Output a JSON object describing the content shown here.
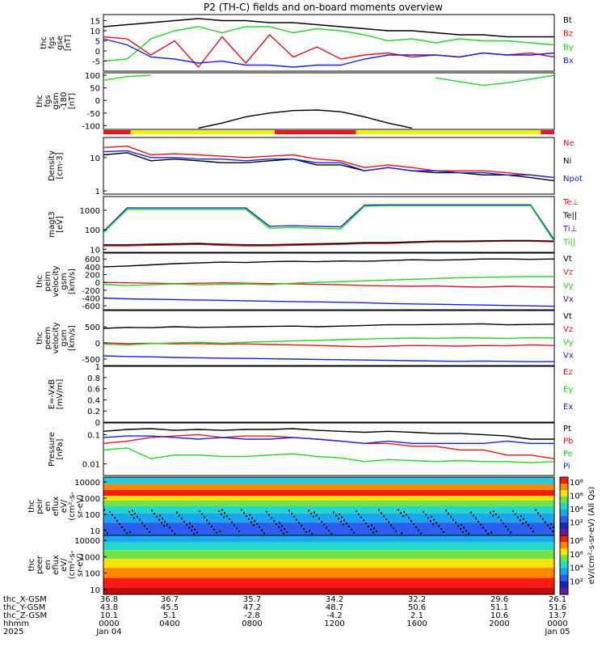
{
  "title": "P2 (TH-C) fields and on-board moments overview",
  "colors": {
    "black": "#000000",
    "red": "#e8161b",
    "green": "#1fd71f",
    "blue": "#1a20e0",
    "yellow": "#f2f200"
  },
  "chart_data": [
    {
      "type": "line",
      "ylabel": [
        "thc",
        "fgs",
        "gse",
        "[nT]"
      ],
      "ylim": [
        -10,
        18
      ],
      "yticks": [
        15,
        10,
        5,
        0,
        -5
      ],
      "legend": [
        "Bt",
        "Bz",
        "By",
        "Bx"
      ],
      "series": [
        {
          "name": "Bt",
          "color": "black",
          "values": [
            12,
            13,
            14,
            15,
            16,
            15,
            15,
            14,
            14,
            13,
            12,
            11,
            10,
            10,
            9,
            8,
            8,
            7,
            7,
            7
          ]
        },
        {
          "name": "Bz",
          "color": "red",
          "values": [
            7,
            6,
            -2,
            5,
            -8,
            7,
            -6,
            8,
            -3,
            2,
            -4,
            -2,
            -1,
            -3,
            -2,
            -3,
            -1,
            -2,
            -1,
            -3
          ]
        },
        {
          "name": "By",
          "color": "green",
          "values": [
            -5,
            -4,
            6,
            10,
            12,
            9,
            12,
            12,
            9,
            11,
            10,
            8,
            5,
            6,
            4,
            6,
            5,
            5,
            4,
            3
          ]
        },
        {
          "name": "Bx",
          "color": "blue",
          "values": [
            6,
            3,
            -3,
            -4,
            -6,
            -5,
            -7,
            -7,
            -8,
            -7,
            -7,
            -4,
            -2,
            -2,
            -2,
            -3,
            -1,
            -2,
            -2,
            -1
          ]
        }
      ]
    },
    {
      "type": "line",
      "ylabel": [
        "thc",
        "fgs",
        "gsm",
        "-180",
        "[nT]"
      ],
      "ylim": [
        -115,
        110
      ],
      "yticks": [
        100,
        50,
        0,
        -50,
        -100
      ],
      "series": [
        {
          "name": "black",
          "color": "black",
          "values": [
            null,
            null,
            null,
            null,
            -110,
            -90,
            -65,
            -50,
            -40,
            -38,
            -45,
            -65,
            -90,
            -110,
            null,
            null,
            null,
            null,
            null,
            null
          ]
        },
        {
          "name": "green",
          "color": "green",
          "values": [
            80,
            95,
            100,
            null,
            null,
            null,
            null,
            null,
            null,
            null,
            null,
            null,
            null,
            null,
            90,
            75,
            60,
            70,
            85,
            100
          ]
        }
      ],
      "flag_bar": [
        {
          "from": 0,
          "to": 0.06,
          "color": "red"
        },
        {
          "from": 0.06,
          "to": 0.38,
          "color": "yellow"
        },
        {
          "from": 0.38,
          "to": 0.56,
          "color": "red"
        },
        {
          "from": 0.56,
          "to": 0.97,
          "color": "yellow"
        },
        {
          "from": 0.97,
          "to": 1.0,
          "color": "red"
        }
      ]
    },
    {
      "type": "line",
      "ylabel": [
        "Density",
        "[cm-3]"
      ],
      "ylim": [
        0.8,
        40
      ],
      "yticks": [
        10,
        1
      ],
      "log": true,
      "legend": [
        "Ne",
        "Ni",
        "Npot"
      ],
      "series": [
        {
          "name": "Ne",
          "color": "red",
          "values": [
            20,
            22,
            12,
            13,
            12,
            11,
            10,
            11,
            12,
            9,
            8,
            5,
            6,
            5,
            4,
            4,
            4,
            3.5,
            3,
            2.5
          ]
        },
        {
          "name": "Ni",
          "color": "black",
          "values": [
            12,
            14,
            8,
            9,
            8,
            7,
            7,
            8,
            9,
            6,
            6,
            4,
            5,
            4,
            3.5,
            3.5,
            3,
            3,
            2.5,
            2
          ]
        },
        {
          "name": "Npot",
          "color": "blue",
          "values": [
            15,
            16,
            10,
            10,
            9,
            9,
            8,
            9,
            9,
            7,
            7,
            4,
            5,
            4,
            4,
            3.5,
            3.5,
            3,
            3,
            2.5
          ]
        }
      ]
    },
    {
      "type": "line",
      "ylabel": [
        "magt3",
        "[eV]"
      ],
      "ylim": [
        7,
        5000
      ],
      "yticks": [
        1000,
        100,
        10
      ],
      "log": true,
      "legend": [
        "Te⊥",
        "Te||",
        "Ti⊥",
        "Ti||"
      ],
      "series": [
        {
          "name": "Te⊥",
          "color": "red",
          "values": [
            15,
            15,
            16,
            17,
            18,
            16,
            15,
            15,
            16,
            17,
            18,
            20,
            20,
            22,
            24,
            24,
            25,
            26,
            26,
            24
          ]
        },
        {
          "name": "Te||",
          "color": "black",
          "values": [
            17,
            17,
            18,
            19,
            20,
            18,
            17,
            17,
            18,
            19,
            20,
            22,
            22,
            24,
            26,
            26,
            27,
            28,
            28,
            26
          ]
        },
        {
          "name": "Ti⊥",
          "color": "blue",
          "values": [
            80,
            1300,
            1300,
            1300,
            1300,
            1300,
            1300,
            150,
            160,
            150,
            140,
            1800,
            1900,
            1900,
            1900,
            1900,
            1900,
            1900,
            1900,
            30
          ]
        },
        {
          "name": "Ti||",
          "color": "green",
          "values": [
            70,
            1100,
            1100,
            1100,
            1100,
            1100,
            1100,
            120,
            130,
            120,
            110,
            1600,
            1700,
            1700,
            1700,
            1700,
            1700,
            1700,
            1700,
            25
          ]
        }
      ]
    },
    {
      "type": "line",
      "ylabel": [
        "thc",
        "peim",
        "velocity",
        "gsm",
        "[km/s]"
      ],
      "ylim": [
        -700,
        750
      ],
      "yticks": [
        600,
        400,
        200,
        0,
        -200,
        -400,
        -600
      ],
      "legend": [
        "Vt",
        "Vz",
        "Vy",
        "Vx"
      ],
      "series": [
        {
          "name": "Vt",
          "color": "black",
          "values": [
            400,
            420,
            450,
            480,
            500,
            520,
            510,
            530,
            540,
            530,
            550,
            540,
            560,
            580,
            570,
            580,
            600,
            600,
            590,
            600
          ]
        },
        {
          "name": "Vz",
          "color": "red",
          "values": [
            0,
            -10,
            -20,
            -30,
            -20,
            -10,
            -20,
            -30,
            -40,
            -50,
            -60,
            -80,
            -90,
            -100,
            -90,
            -110,
            -120,
            -100,
            -110,
            -120
          ]
        },
        {
          "name": "Vy",
          "color": "green",
          "values": [
            -50,
            -80,
            -60,
            -40,
            -60,
            -50,
            -40,
            -60,
            -20,
            0,
            20,
            40,
            60,
            80,
            100,
            120,
            130,
            140,
            150,
            150
          ]
        },
        {
          "name": "Vx",
          "color": "blue",
          "values": [
            -400,
            -420,
            -430,
            -440,
            -450,
            -460,
            -470,
            -480,
            -490,
            -500,
            -510,
            -520,
            -540,
            -550,
            -560,
            -570,
            -580,
            -590,
            -600,
            -610
          ]
        }
      ]
    },
    {
      "type": "line",
      "ylabel": [
        "thc",
        "peem",
        "velocity",
        "gsm",
        "[km/s]"
      ],
      "ylim": [
        -700,
        1000
      ],
      "yticks": [
        500,
        0,
        -500
      ],
      "legend": [
        "Vt",
        "Vz",
        "Vy",
        "Vx"
      ],
      "series": [
        {
          "name": "Vt",
          "color": "black",
          "values": [
            450,
            480,
            470,
            500,
            480,
            490,
            500,
            510,
            520,
            500,
            520,
            540,
            560,
            560,
            570,
            580,
            590,
            560,
            570,
            580
          ]
        },
        {
          "name": "Vz",
          "color": "red",
          "values": [
            0,
            -20,
            -10,
            -30,
            -20,
            -40,
            -30,
            -50,
            -60,
            -80,
            -100,
            -120,
            -100,
            -80,
            -90,
            -100,
            -80,
            -90,
            -60,
            -80
          ]
        },
        {
          "name": "Vy",
          "color": "green",
          "values": [
            -40,
            -60,
            -20,
            0,
            20,
            -10,
            20,
            40,
            60,
            80,
            100,
            120,
            140,
            150,
            140,
            160,
            150,
            140,
            160,
            150
          ]
        },
        {
          "name": "Vx",
          "color": "blue",
          "values": [
            -400,
            -420,
            -430,
            -450,
            -460,
            -470,
            -480,
            -490,
            -500,
            -510,
            -520,
            -530,
            -540,
            -550,
            -560,
            -570,
            -560,
            -570,
            -580,
            -580
          ]
        }
      ]
    },
    {
      "type": "line",
      "ylabel": [
        "E=-VxB",
        "[mV/m]"
      ],
      "ylim": [
        0,
        1.0
      ],
      "yticks": [
        1.0,
        0.8,
        0.6,
        0.4,
        0.2,
        0.0
      ],
      "legend": [
        "Ez",
        "Ey",
        "Ex"
      ],
      "series": []
    },
    {
      "type": "line",
      "ylabel": [
        "Pressure",
        "[nPa]"
      ],
      "ylim": [
        0.004,
        0.25
      ],
      "yticks": [
        0.1,
        0.01
      ],
      "log": true,
      "legend": [
        "Pt",
        "Pb",
        "Pe",
        "Pi"
      ],
      "series": [
        {
          "name": "Pt",
          "color": "black",
          "values": [
            0.13,
            0.15,
            0.16,
            0.14,
            0.15,
            0.14,
            0.15,
            0.15,
            0.16,
            0.14,
            0.13,
            0.12,
            0.13,
            0.12,
            0.11,
            0.11,
            0.1,
            0.09,
            0.07,
            0.07
          ]
        },
        {
          "name": "Pb",
          "color": "red",
          "values": [
            0.05,
            0.06,
            0.08,
            0.09,
            0.1,
            0.08,
            0.09,
            0.09,
            0.08,
            0.07,
            0.06,
            0.05,
            0.05,
            0.04,
            0.04,
            0.03,
            0.03,
            0.02,
            0.02,
            0.015
          ]
        },
        {
          "name": "Pe",
          "color": "green",
          "values": [
            0.03,
            0.035,
            0.015,
            0.02,
            0.02,
            0.018,
            0.018,
            0.02,
            0.022,
            0.018,
            0.016,
            0.012,
            0.014,
            0.013,
            0.012,
            0.013,
            0.012,
            0.012,
            0.011,
            0.012
          ]
        },
        {
          "name": "Pi",
          "color": "blue",
          "values": [
            0.08,
            0.09,
            0.09,
            0.08,
            0.07,
            0.08,
            0.07,
            0.07,
            0.08,
            0.07,
            0.06,
            0.05,
            0.06,
            0.05,
            0.05,
            0.05,
            0.05,
            0.06,
            0.05,
            0.05
          ]
        }
      ]
    },
    {
      "type": "heatmap",
      "ylabel": [
        "thc",
        "peir",
        "en",
        "eflux",
        "eV/",
        "(cm^2-s-",
        "sr-eV)"
      ],
      "ylim": [
        5,
        20000
      ],
      "yticks": [
        10000,
        1000,
        100,
        10
      ],
      "log": true,
      "colorbar": "eV/(cm^2-s-sr-eV) (All Qs)",
      "cbticks": [
        "10^8",
        "10^6",
        "10^4",
        "10^2"
      ]
    },
    {
      "type": "heatmap",
      "ylabel": [
        "thc",
        "peer",
        "en",
        "eflux",
        "eV/",
        "(cm^2-s-",
        "sr-eV)"
      ],
      "ylim": [
        5,
        20000
      ],
      "yticks": [
        10000,
        1000,
        100,
        10
      ],
      "log": true,
      "cbticks": [
        "10^8",
        "10^6",
        "10^4",
        "10^2"
      ]
    }
  ],
  "footer": {
    "rows": [
      {
        "label": "thc_X-GSM",
        "values": [
          "36.8",
          "36.7",
          "35.7",
          "34.2",
          "32.2",
          "29.6",
          "26.1"
        ]
      },
      {
        "label": "thc_Y-GSM",
        "values": [
          "43.8",
          "45.5",
          "47.2",
          "48.7",
          "50.6",
          "51.1",
          "51.6"
        ]
      },
      {
        "label": "thc_Z-GSM",
        "values": [
          "10.1",
          "5.1",
          "-2.8",
          "-4.2",
          "2.1",
          "10.6",
          "13.7"
        ]
      },
      {
        "label": "hhmm",
        "values": [
          "0000",
          "0400",
          "0800",
          "1200",
          "1600",
          "2000",
          "0000"
        ]
      },
      {
        "label": "2025",
        "values": [
          "Jan 04",
          "",
          "",
          "",
          "",
          "",
          "Jan 05"
        ]
      }
    ]
  }
}
